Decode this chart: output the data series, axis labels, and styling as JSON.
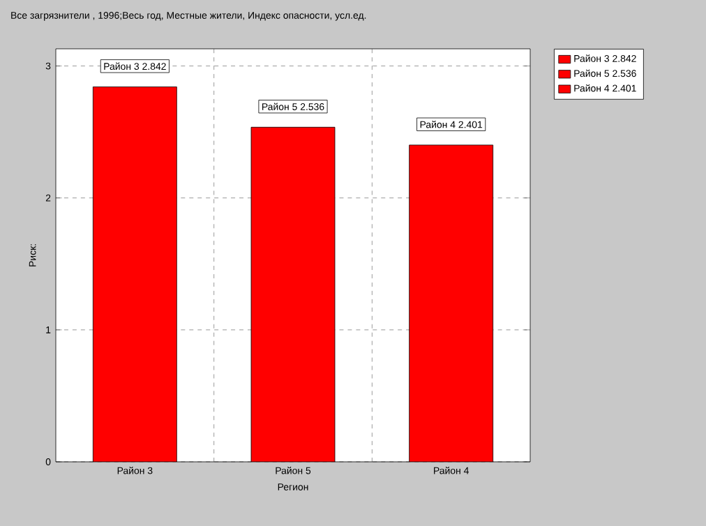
{
  "chart_data": {
    "type": "bar",
    "title": "Все загрязнители , 1996;Весь год, Местные жители, Индекс опасности, усл.ед.",
    "categories": [
      "Район 3",
      "Район 5",
      "Район 4"
    ],
    "xlabel": "Регион",
    "ylabel": "Риск:",
    "series": [
      {
        "name": "Район 3 2.842",
        "color": "#ff0000",
        "values": [
          2.842,
          null,
          null
        ],
        "value_labels": [
          "Район 3 2.842",
          null,
          null
        ]
      },
      {
        "name": "Район 5 2.536",
        "color": "#ff0000",
        "values": [
          null,
          2.536,
          null
        ],
        "value_labels": [
          null,
          "Район 5 2.536",
          null
        ]
      },
      {
        "name": "Район 4 2.401",
        "color": "#ff0000",
        "values": [
          null,
          null,
          2.401
        ],
        "value_labels": [
          null,
          null,
          "Район 4 2.401"
        ]
      }
    ],
    "ylim": [
      0,
      3.13
    ],
    "yticks": [
      0,
      1,
      2,
      3
    ],
    "grid": true,
    "legend": "top right"
  }
}
